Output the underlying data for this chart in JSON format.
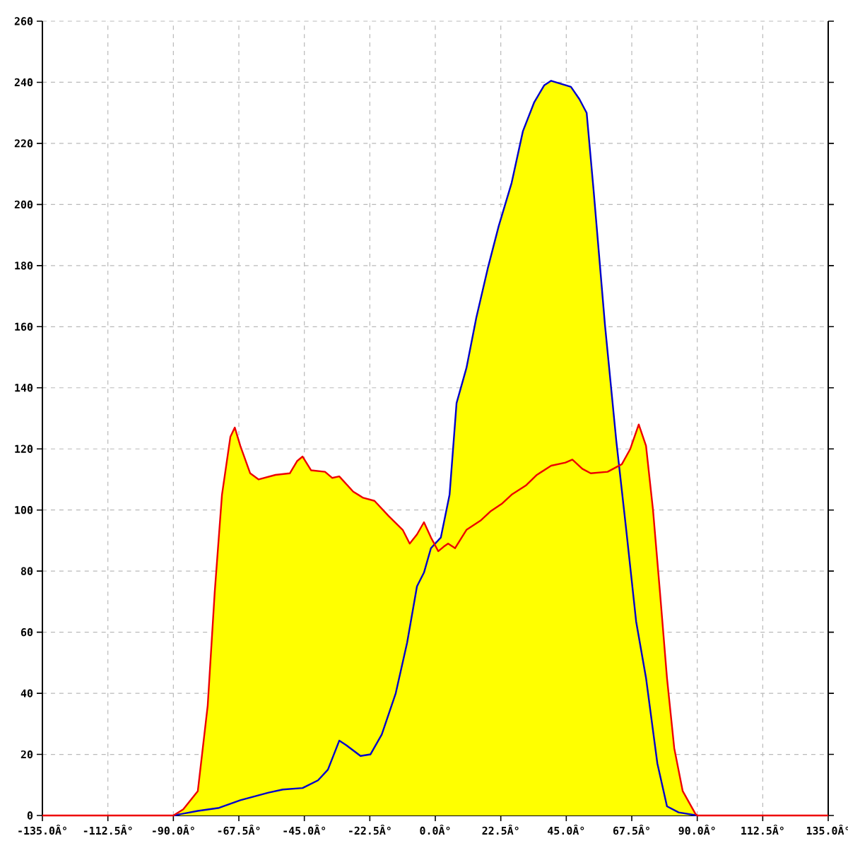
{
  "chart_data": {
    "type": "line",
    "xlim": [
      -135,
      135
    ],
    "xticks": [
      {
        "value": -135,
        "label": "-135.0Â°"
      },
      {
        "value": -112.5,
        "label": "-112.5Â°"
      },
      {
        "value": -90,
        "label": "-90.0Â°"
      },
      {
        "value": -67.5,
        "label": "-67.5Â°"
      },
      {
        "value": -45,
        "label": "-45.0Â°"
      },
      {
        "value": -22.5,
        "label": "-22.5Â°"
      },
      {
        "value": 0,
        "label": "0.0Â°"
      },
      {
        "value": 22.5,
        "label": "22.5Â°"
      },
      {
        "value": 45,
        "label": "45.0Â°"
      },
      {
        "value": 67.5,
        "label": "67.5Â°"
      },
      {
        "value": 90,
        "label": "90.0Â°"
      },
      {
        "value": 112.5,
        "label": "112.5Â°"
      },
      {
        "value": 135,
        "label": "135.0Â°"
      }
    ],
    "ylim": [
      0,
      260
    ],
    "yticks": [
      0,
      20,
      40,
      60,
      80,
      100,
      120,
      140,
      160,
      180,
      200,
      220,
      240,
      260
    ],
    "grid": true,
    "legend": false,
    "series": [
      {
        "type": "area",
        "color": "#ffff00",
        "x": [
          -135,
          -90,
          -86.6,
          -81.6,
          -78.2,
          -75.8,
          -73.3,
          -70.4,
          -68.9,
          -67,
          -63.6,
          -60.7,
          -54.9,
          -50,
          -47.5,
          -45.6,
          -42.7,
          -37.9,
          -35.4,
          -33,
          -28.2,
          -24.8,
          -20.9,
          -16,
          -11.2,
          -8.8,
          -6.3,
          -3.9,
          -1.5,
          -0.5,
          1.9,
          4.9,
          7.3,
          10.7,
          14.1,
          18,
          21.8,
          26.2,
          30.1,
          34,
          37.4,
          39.8,
          43.2,
          46.6,
          49.5,
          52,
          54.4,
          58.3,
          62.2,
          63.3,
          64.1,
          67,
          69.9,
          72.4,
          74.8,
          77.2,
          79.6,
          82.1,
          85,
          89.4,
          90,
          135
        ],
        "values": [
          0,
          0,
          2,
          8,
          36,
          73,
          105,
          124,
          127,
          121,
          112,
          110,
          111.5,
          112,
          116,
          117.5,
          113,
          112.5,
          110.5,
          111,
          106,
          104,
          103,
          98,
          93.5,
          89,
          92,
          96,
          91,
          89,
          91,
          105,
          135,
          146.5,
          163,
          179,
          193,
          207,
          224,
          233.5,
          239,
          240.5,
          239.5,
          238.5,
          234.5,
          230,
          204.5,
          160.5,
          122.5,
          114.5,
          115,
          120,
          128,
          121,
          100,
          73,
          45,
          22,
          8,
          0.5,
          0,
          0
        ]
      },
      {
        "color": "#0000cc",
        "x": [
          -90,
          -81.6,
          -74.3,
          -67,
          -57.3,
          -52.4,
          -45.6,
          -40.3,
          -36.9,
          -33,
          -30.6,
          -25.7,
          -22.3,
          -18.4,
          -13.6,
          -9.7,
          -6.3,
          -3.9,
          -1.5,
          1.9,
          4.9,
          7.3,
          10.7,
          14.1,
          18,
          21.8,
          26.2,
          30.1,
          34,
          37.4,
          39.8,
          43.2,
          46.6,
          49.5,
          52,
          54.4,
          58.3,
          62.2,
          65.6,
          69,
          72.4,
          76.3,
          79.6,
          83.6,
          90
        ],
        "values": [
          0,
          1.5,
          2.5,
          5,
          7.5,
          8.5,
          9,
          11.5,
          15,
          24.5,
          23,
          19.5,
          20,
          26.5,
          40,
          56.5,
          75,
          79.5,
          87.5,
          91,
          105,
          135,
          146.5,
          163,
          179,
          193,
          207,
          224,
          233.5,
          239,
          240.5,
          239.5,
          238.5,
          234.5,
          230,
          204.5,
          160.5,
          122.5,
          93.5,
          63.5,
          45,
          17,
          3,
          1,
          0
        ]
      },
      {
        "color": "#ee0000",
        "x": [
          -135,
          -90,
          -86.6,
          -81.6,
          -78.2,
          -75.8,
          -73.3,
          -70.4,
          -68.9,
          -67,
          -63.6,
          -60.7,
          -54.9,
          -50,
          -47.5,
          -45.6,
          -42.7,
          -37.9,
          -35.4,
          -33,
          -28.2,
          -24.8,
          -20.9,
          -16,
          -11.2,
          -8.8,
          -6.3,
          -3.9,
          -1.5,
          1,
          2.9,
          4.4,
          6.8,
          10.7,
          15.5,
          18.9,
          22.8,
          26.2,
          31.1,
          34.9,
          39.8,
          44.7,
          47.1,
          50.5,
          53.4,
          59.2,
          64.1,
          67,
          69.9,
          72.4,
          74.8,
          77.2,
          79.6,
          82.1,
          85,
          89.4,
          90,
          135
        ],
        "values": [
          0,
          0,
          2,
          8,
          36,
          73,
          105,
          124,
          127,
          121,
          112,
          110,
          111.5,
          112,
          116,
          117.5,
          113,
          112.5,
          110.5,
          111,
          106,
          104,
          103,
          98,
          93.5,
          89,
          92,
          96,
          91,
          86.5,
          88,
          89,
          87.5,
          93.5,
          96.5,
          99.5,
          102,
          105,
          108,
          111.5,
          114.5,
          115.5,
          116.5,
          113.5,
          112,
          112.5,
          115,
          120,
          128,
          121,
          100,
          73,
          45,
          22,
          8,
          0.5,
          0,
          0
        ]
      }
    ]
  }
}
